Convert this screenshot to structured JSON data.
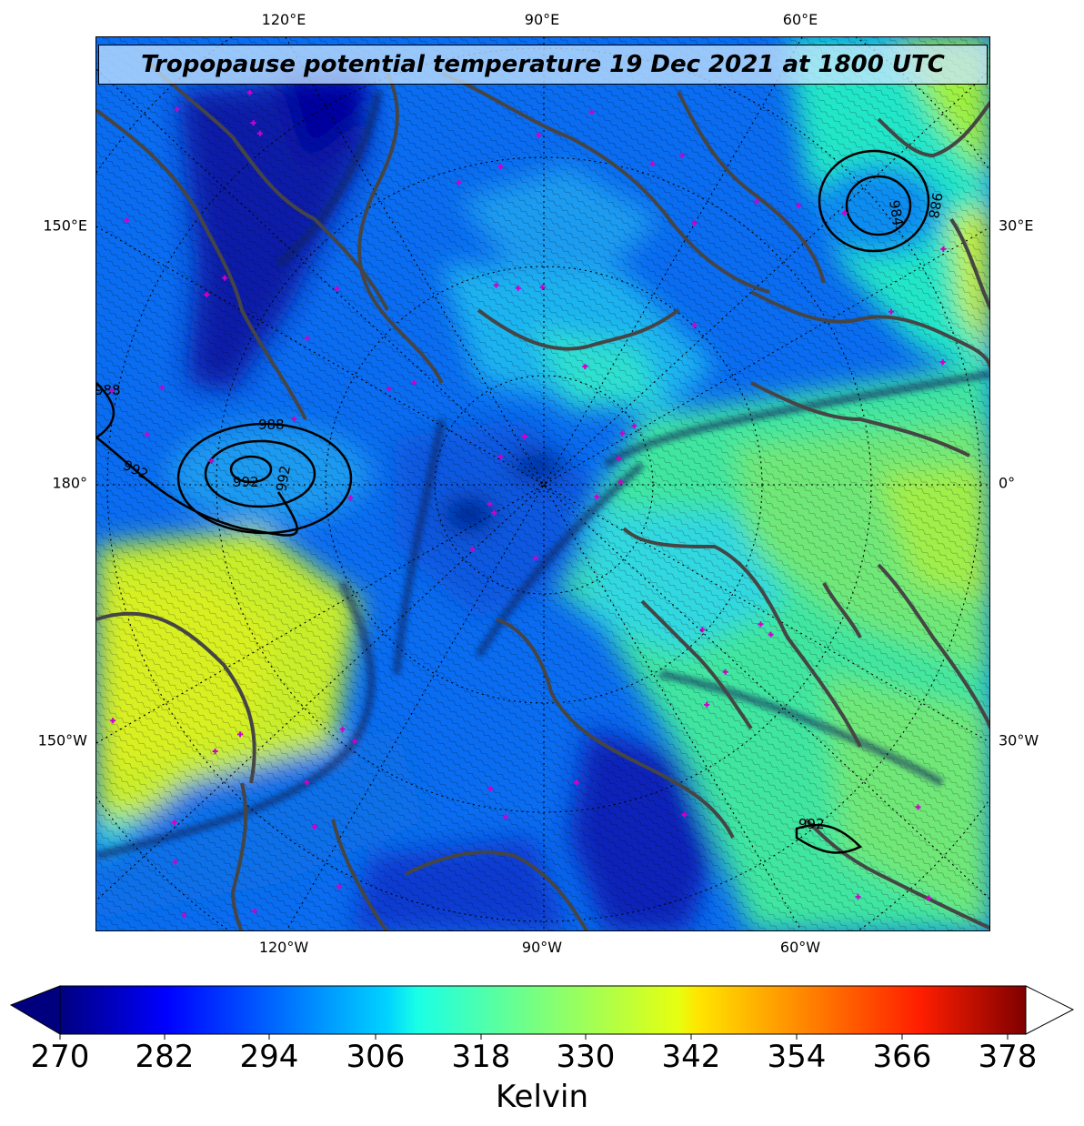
{
  "title": "Tropopause potential temperature 19 Dec 2021 at 1800 UTC",
  "map": {
    "projection": "north polar stereographic",
    "lon_ticks_top": [
      "120°E",
      "90°E",
      "60°E"
    ],
    "lon_ticks_bottom": [
      "120°W",
      "90°W",
      "60°W"
    ],
    "lon_ticks_left": [
      "150°E",
      "180°",
      "150°W"
    ],
    "lon_ticks_right": [
      "30°E",
      "0°",
      "30°W"
    ],
    "pressure_contours": [
      "988",
      "992",
      "988",
      "992",
      "992",
      "984",
      "988",
      "992"
    ]
  },
  "colorbar": {
    "label": "Kelvin",
    "ticks": [
      "270",
      "282",
      "294",
      "306",
      "318",
      "330",
      "342",
      "354",
      "366",
      "378"
    ],
    "colormap": "jet",
    "extend": "both",
    "range": [
      270,
      384
    ]
  },
  "colors": {
    "marker": "#cc00cc",
    "coastline": "#444444",
    "contour": "#000000"
  }
}
